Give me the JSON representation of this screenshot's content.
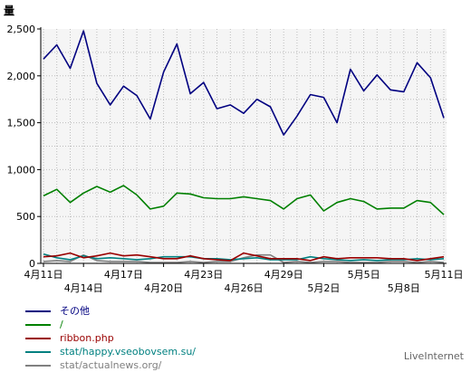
{
  "chart_data": {
    "type": "line",
    "ylabel": "量",
    "ylim": [
      0,
      2500
    ],
    "y_ticks": [
      "0",
      "500",
      "1,000",
      "1,500",
      "2,000",
      "2,500"
    ],
    "grid": true,
    "x_ticks": [
      {
        "label": "4月11日",
        "index": 0,
        "row": 1
      },
      {
        "label": "4月14日",
        "index": 3,
        "row": 2
      },
      {
        "label": "4月17日",
        "index": 6,
        "row": 1
      },
      {
        "label": "4月20日",
        "index": 9,
        "row": 2
      },
      {
        "label": "4月23日",
        "index": 12,
        "row": 1
      },
      {
        "label": "4月26日",
        "index": 15,
        "row": 2
      },
      {
        "label": "4月29日",
        "index": 18,
        "row": 1
      },
      {
        "label": "5月2日",
        "index": 21,
        "row": 2
      },
      {
        "label": "5月5日",
        "index": 24,
        "row": 1
      },
      {
        "label": "5月8日",
        "index": 27,
        "row": 2
      },
      {
        "label": "5月11日",
        "index": 30,
        "row": 1
      }
    ],
    "legend_placement": "bottom-left",
    "series": [
      {
        "name": "その他",
        "color": "#000080",
        "values": [
          2180,
          2330,
          2080,
          2480,
          1920,
          1690,
          1890,
          1790,
          1540,
          2040,
          2340,
          1810,
          1930,
          1650,
          1690,
          1600,
          1750,
          1670,
          1370,
          1570,
          1800,
          1770,
          1500,
          2070,
          1840,
          2010,
          1850,
          1830,
          2140,
          1980,
          1550
        ]
      },
      {
        "name": "/",
        "color": "#008000",
        "values": [
          720,
          790,
          650,
          750,
          820,
          760,
          830,
          730,
          580,
          610,
          750,
          740,
          700,
          690,
          690,
          710,
          690,
          670,
          580,
          690,
          730,
          560,
          650,
          690,
          660,
          580,
          590,
          590,
          670,
          650,
          520
        ]
      },
      {
        "name": "ribbon.php",
        "color": "#990000",
        "values": [
          70,
          80,
          110,
          60,
          80,
          110,
          80,
          90,
          70,
          50,
          50,
          80,
          50,
          40,
          30,
          110,
          80,
          50,
          50,
          50,
          30,
          70,
          50,
          60,
          60,
          60,
          50,
          50,
          30,
          50,
          70
        ]
      },
      {
        "name": "stat/happy.vseobovsem.su/",
        "color": "#008080",
        "values": [
          100,
          60,
          40,
          80,
          50,
          60,
          50,
          40,
          50,
          70,
          70,
          70,
          50,
          50,
          40,
          50,
          60,
          40,
          40,
          40,
          70,
          50,
          40,
          30,
          40,
          30,
          40,
          40,
          50,
          40,
          50
        ]
      },
      {
        "name": "stat/actualnews.org/",
        "color": "#808080",
        "values": [
          20,
          30,
          20,
          90,
          30,
          20,
          20,
          20,
          10,
          10,
          10,
          20,
          10,
          20,
          20,
          60,
          90,
          90,
          10,
          20,
          10,
          20,
          20,
          10,
          10,
          10,
          20,
          20,
          10,
          20,
          10
        ]
      }
    ]
  },
  "branding": "LiveInternet"
}
